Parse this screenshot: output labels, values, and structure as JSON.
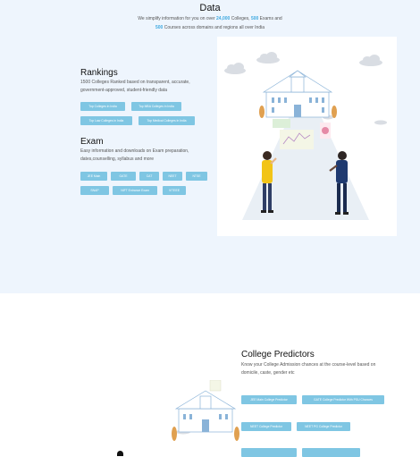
{
  "data_section": {
    "title": "Data",
    "desc_part1": "We simplify information for you on over ",
    "colleges_count": "24,000",
    "desc_part2": " Colleges, ",
    "exams_count": "500",
    "desc_part3": " Exams and ",
    "courses_count": "500",
    "desc_part4": " Courses across domains and regions all over India"
  },
  "rankings": {
    "title": "Rankings",
    "desc": "1500 Colleges Ranked based on transparent, accurate, government-approved, student-friendly data",
    "buttons": [
      "Top Colleges in India",
      "Top MBA Colleges in India",
      "Top Law Colleges in India",
      "Top Medical Colleges in India"
    ]
  },
  "exam": {
    "title": "Exam",
    "desc": "Easy information and downloads on Exam preparation, dates,counselling, syllabus and more",
    "buttons": [
      "JEE Main",
      "GATE",
      "CAT",
      "NEET",
      "NTSE",
      "SNAP",
      "NIFT Entrance Exam",
      "VITEEE"
    ]
  },
  "predictors": {
    "title": "College Predictors",
    "desc": "Know your College Admission chances at the course-level based on domicile, caste, gender etc",
    "buttons": [
      "JEE Main College Predictor",
      "GATE College Predictor With PSU Chances",
      "NEET College Predictor",
      "NEET PG College Predictor",
      "",
      ""
    ]
  },
  "colors": {
    "accent": "#3fa9e0",
    "button": "#7fc6e3",
    "band": "#eef5fd"
  },
  "icons": [
    "college-building-illustration",
    "student-thinking-illustration",
    "student-presenting-illustration",
    "cloud-icon"
  ]
}
